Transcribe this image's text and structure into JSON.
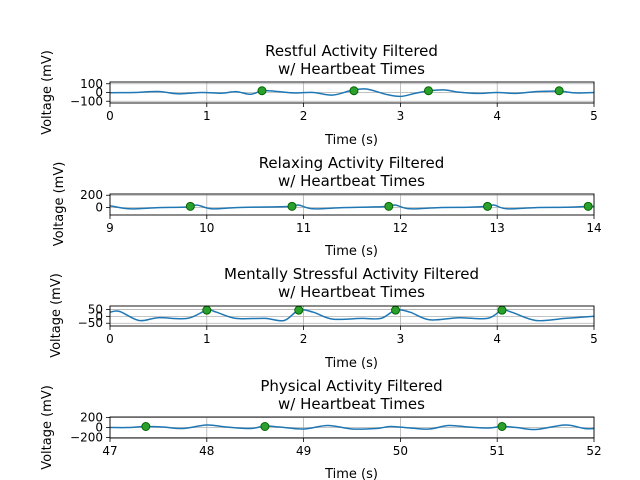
{
  "figure": {
    "colors": {
      "signal": "#1f77b4",
      "beat_fill": "#2ca02c",
      "beat_edge": "#006400",
      "grid": "#b0b0b0"
    }
  },
  "chart_data": [
    {
      "type": "line",
      "title_line1": "Restful Activity Filtered",
      "title_line2": "w/ Heartbeat Times",
      "xlabel": "Time (s)",
      "ylabel": "Voltage (mV)",
      "xlim": [
        0,
        5
      ],
      "ylim": [
        -120,
        120
      ],
      "xticks": [
        0,
        1,
        2,
        3,
        4,
        5
      ],
      "yticks": [
        100,
        0,
        -100
      ],
      "grid": true,
      "series": [
        {
          "values": [
            [
              0,
              -2
            ],
            [
              0.25,
              0
            ],
            [
              0.5,
              12
            ],
            [
              0.7,
              -15
            ],
            [
              0.95,
              0
            ],
            [
              1.15,
              -8
            ],
            [
              1.3,
              10
            ],
            [
              1.45,
              -20
            ],
            [
              1.57,
              20
            ],
            [
              1.7,
              15
            ],
            [
              1.9,
              -5
            ],
            [
              2.1,
              0
            ],
            [
              2.3,
              -30
            ],
            [
              2.5,
              25
            ],
            [
              2.65,
              40
            ],
            [
              2.85,
              -20
            ],
            [
              3.0,
              -45
            ],
            [
              3.15,
              -10
            ],
            [
              3.3,
              20
            ],
            [
              3.45,
              30
            ],
            [
              3.6,
              5
            ],
            [
              3.8,
              -10
            ],
            [
              4.0,
              0
            ],
            [
              4.2,
              -10
            ],
            [
              4.4,
              10
            ],
            [
              4.65,
              15
            ],
            [
              4.8,
              -5
            ],
            [
              5.0,
              0
            ]
          ]
        }
      ],
      "markers": [
        [
          1.57,
          20
        ],
        [
          2.52,
          20
        ],
        [
          3.29,
          20
        ],
        [
          4.64,
          20
        ]
      ]
    },
    {
      "type": "line",
      "title_line1": "Relaxing Activity Filtered",
      "title_line2": "w/ Heartbeat Times",
      "xlabel": "Time (s)",
      "ylabel": "Voltage (mV)",
      "xlim": [
        9,
        14
      ],
      "ylim": [
        -120,
        220
      ],
      "xticks": [
        9,
        10,
        11,
        12,
        13,
        14
      ],
      "yticks": [
        200,
        0
      ],
      "grid": true,
      "series": [
        {
          "values": [
            [
              9,
              30
            ],
            [
              9.2,
              -20
            ],
            [
              9.5,
              0
            ],
            [
              9.8,
              10
            ],
            [
              9.9,
              40
            ],
            [
              10.05,
              -20
            ],
            [
              10.3,
              0
            ],
            [
              10.6,
              10
            ],
            [
              10.88,
              20
            ],
            [
              10.95,
              40
            ],
            [
              11.1,
              -20
            ],
            [
              11.4,
              0
            ],
            [
              11.7,
              10
            ],
            [
              11.88,
              20
            ],
            [
              11.95,
              40
            ],
            [
              12.1,
              -20
            ],
            [
              12.4,
              0
            ],
            [
              12.7,
              5
            ],
            [
              12.9,
              20
            ],
            [
              12.97,
              40
            ],
            [
              13.1,
              -20
            ],
            [
              13.4,
              0
            ],
            [
              13.7,
              5
            ],
            [
              13.94,
              20
            ],
            [
              14,
              20
            ]
          ]
        }
      ],
      "markers": [
        [
          9.83,
          20
        ],
        [
          10.88,
          20
        ],
        [
          11.88,
          20
        ],
        [
          12.9,
          20
        ],
        [
          13.94,
          20
        ]
      ]
    },
    {
      "type": "line",
      "title_line1": "Mentally Stressful Activity Filtered",
      "title_line2": "w/ Heartbeat Times",
      "xlabel": "Time (s)",
      "ylabel": "Voltage (mV)",
      "xlim": [
        0,
        5
      ],
      "ylim": [
        -70,
        75
      ],
      "xticks": [
        0,
        1,
        2,
        3,
        4,
        5
      ],
      "yticks": [
        50,
        0,
        -50
      ],
      "grid": true,
      "series": [
        {
          "values": [
            [
              0,
              30
            ],
            [
              0.1,
              35
            ],
            [
              0.3,
              -30
            ],
            [
              0.5,
              -10
            ],
            [
              0.8,
              -15
            ],
            [
              1.0,
              45
            ],
            [
              1.1,
              30
            ],
            [
              1.3,
              -15
            ],
            [
              1.6,
              -15
            ],
            [
              1.8,
              -30
            ],
            [
              1.95,
              45
            ],
            [
              2.1,
              30
            ],
            [
              2.3,
              -20
            ],
            [
              2.6,
              -15
            ],
            [
              2.8,
              -15
            ],
            [
              2.95,
              45
            ],
            [
              3.1,
              30
            ],
            [
              3.3,
              -25
            ],
            [
              3.6,
              -10
            ],
            [
              3.9,
              -15
            ],
            [
              4.05,
              45
            ],
            [
              4.15,
              30
            ],
            [
              4.4,
              -30
            ],
            [
              4.7,
              -15
            ],
            [
              5.0,
              0
            ]
          ]
        }
      ],
      "markers": [
        [
          1.0,
          45
        ],
        [
          1.95,
          45
        ],
        [
          2.95,
          45
        ],
        [
          4.05,
          45
        ]
      ]
    },
    {
      "type": "line",
      "title_line1": "Physical Activity Filtered",
      "title_line2": "w/ Heartbeat Times",
      "xlabel": "Time (s)",
      "ylabel": "Voltage (mV)",
      "xlim": [
        47,
        52
      ],
      "ylim": [
        -210,
        210
      ],
      "xticks": [
        47,
        48,
        49,
        50,
        51,
        52
      ],
      "yticks": [
        200,
        0,
        -200
      ],
      "grid": true,
      "series": [
        {
          "values": [
            [
              47,
              0
            ],
            [
              47.2,
              0
            ],
            [
              47.37,
              20
            ],
            [
              47.55,
              10
            ],
            [
              47.75,
              -20
            ],
            [
              48.0,
              50
            ],
            [
              48.2,
              10
            ],
            [
              48.45,
              -20
            ],
            [
              48.6,
              30
            ],
            [
              48.75,
              10
            ],
            [
              49.0,
              -30
            ],
            [
              49.25,
              40
            ],
            [
              49.5,
              -30
            ],
            [
              49.75,
              -20
            ],
            [
              49.9,
              20
            ],
            [
              50.1,
              -10
            ],
            [
              50.3,
              -30
            ],
            [
              50.5,
              40
            ],
            [
              50.7,
              10
            ],
            [
              50.9,
              -10
            ],
            [
              51.05,
              20
            ],
            [
              51.2,
              0
            ],
            [
              51.4,
              -40
            ],
            [
              51.7,
              50
            ],
            [
              51.9,
              -20
            ],
            [
              52,
              -20
            ]
          ]
        }
      ],
      "markers": [
        [
          47.37,
          20
        ],
        [
          48.6,
          20
        ],
        [
          51.05,
          20
        ]
      ]
    }
  ]
}
